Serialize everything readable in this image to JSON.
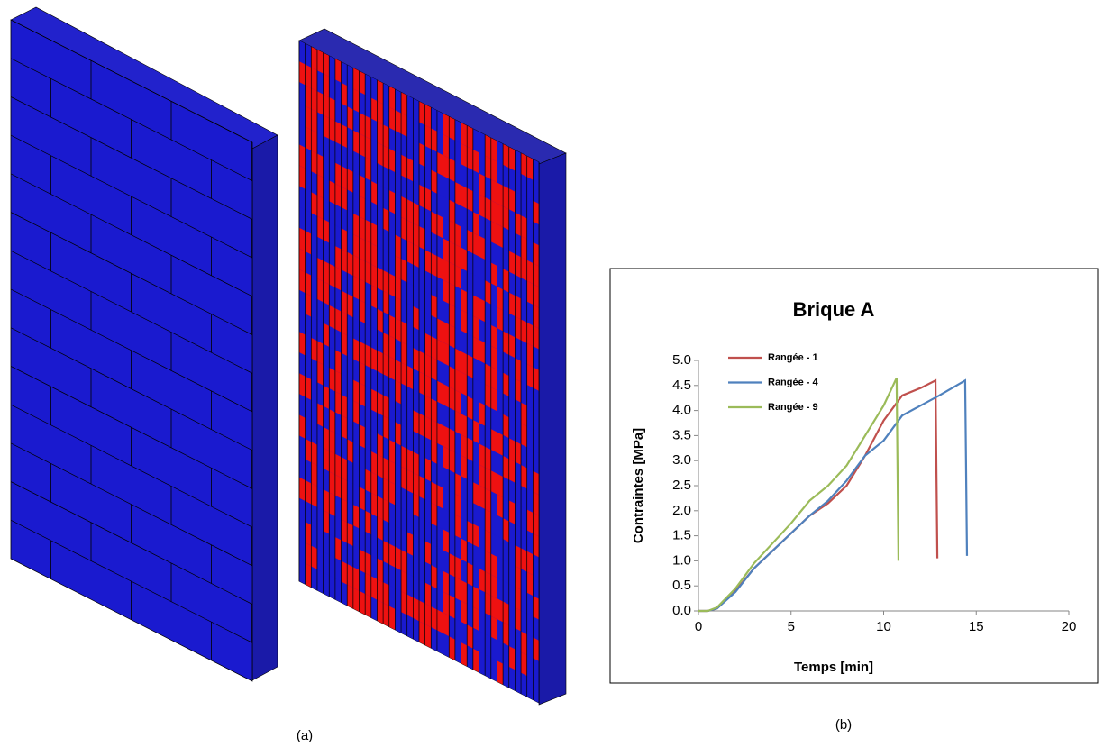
{
  "captions": {
    "a": "(a)",
    "b": "(b)"
  },
  "chart_data": {
    "type": "line",
    "title": "Brique A",
    "xlabel": "Temps [min]",
    "ylabel": "Contraintes [MPa]",
    "xlim": [
      0,
      20
    ],
    "xticks": [
      0,
      5,
      10,
      15,
      20
    ],
    "ylim": [
      0,
      5
    ],
    "yticks": [
      {
        "value": 0,
        "label": "0.0"
      },
      0.5,
      {
        "value": 1,
        "label": "1.0"
      },
      1.5,
      {
        "value": 2,
        "label": "2.0"
      },
      2.5,
      {
        "value": 3,
        "label": "3.0"
      },
      3.5,
      {
        "value": 4,
        "label": "4.0"
      },
      4.5,
      {
        "value": 5,
        "label": "5.0"
      }
    ],
    "legend": "top-left",
    "grid": false,
    "series": [
      {
        "name": "Rangée - 1",
        "color": "#c0504d",
        "x": [
          0,
          0.5,
          1,
          2,
          3,
          4,
          5,
          6,
          7,
          8,
          9,
          10,
          11,
          12,
          12.8,
          12.9
        ],
        "values": [
          0,
          0,
          0.05,
          0.4,
          0.85,
          1.2,
          1.55,
          1.9,
          2.15,
          2.5,
          3.1,
          3.8,
          4.3,
          4.45,
          4.6,
          1.05
        ]
      },
      {
        "name": "Rangée - 4",
        "color": "#4f81bd",
        "x": [
          0,
          0.5,
          1,
          2,
          3,
          4,
          5,
          6,
          7,
          8,
          9,
          10,
          11,
          12,
          13,
          14.4,
          14.5
        ],
        "values": [
          0,
          0,
          0.05,
          0.38,
          0.85,
          1.2,
          1.55,
          1.9,
          2.2,
          2.6,
          3.1,
          3.4,
          3.9,
          4.1,
          4.3,
          4.6,
          1.1
        ]
      },
      {
        "name": "Rangée - 9",
        "color": "#9bbb59",
        "x": [
          0,
          0.5,
          1,
          2,
          3,
          4,
          5,
          6,
          7,
          8,
          9,
          10,
          10.7,
          10.8
        ],
        "values": [
          0,
          0,
          0.07,
          0.45,
          0.95,
          1.35,
          1.75,
          2.2,
          2.5,
          2.9,
          3.5,
          4.1,
          4.65,
          1.0
        ]
      }
    ]
  }
}
